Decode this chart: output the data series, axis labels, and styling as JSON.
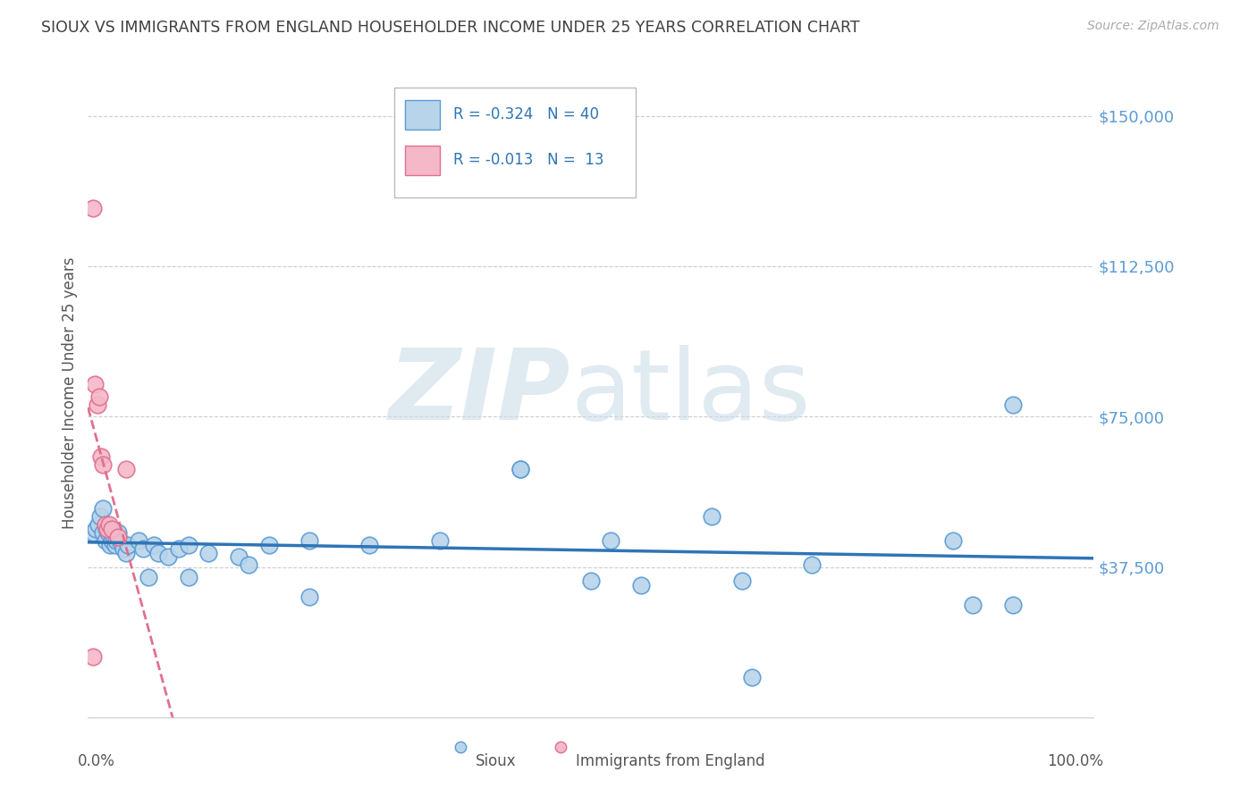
{
  "title": "SIOUX VS IMMIGRANTS FROM ENGLAND HOUSEHOLDER INCOME UNDER 25 YEARS CORRELATION CHART",
  "source": "Source: ZipAtlas.com",
  "ylabel": "Householder Income Under 25 years",
  "ytick_labels": [
    "$37,500",
    "$75,000",
    "$112,500",
    "$150,000"
  ],
  "ytick_values": [
    37500,
    75000,
    112500,
    150000
  ],
  "ymin": 0,
  "ymax": 162000,
  "xmin": 0.0,
  "xmax": 1.0,
  "sioux_color": "#b8d4ea",
  "sioux_edge_color": "#5b9bd5",
  "england_color": "#f4b8c8",
  "england_edge_color": "#e07090",
  "trend_sioux_color": "#2e75b6",
  "trend_england_color": "#e07090",
  "background_color": "#ffffff",
  "grid_color": "#cccccc",
  "axis_color": "#5b9bd5",
  "title_color": "#404040",
  "source_color": "#aaaaaa",
  "sioux_x": [
    0.005,
    0.008,
    0.01,
    0.012,
    0.015,
    0.015,
    0.017,
    0.018,
    0.02,
    0.022,
    0.024,
    0.025,
    0.027,
    0.028,
    0.03,
    0.032,
    0.035,
    0.038,
    0.04,
    0.05,
    0.055,
    0.065,
    0.07,
    0.08,
    0.09,
    0.1,
    0.12,
    0.15,
    0.18,
    0.22,
    0.28,
    0.35,
    0.43,
    0.43,
    0.52,
    0.55,
    0.62,
    0.72,
    0.86,
    0.92
  ],
  "sioux_y": [
    46000,
    47000,
    48000,
    50000,
    52000,
    46000,
    44000,
    47000,
    46000,
    43000,
    44000,
    45000,
    43000,
    44000,
    46000,
    44000,
    42000,
    41000,
    43000,
    44000,
    42000,
    43000,
    41000,
    40000,
    42000,
    43000,
    41000,
    40000,
    43000,
    44000,
    43000,
    44000,
    62000,
    62000,
    44000,
    33000,
    50000,
    38000,
    44000,
    78000
  ],
  "sioux_x2": [
    0.06,
    0.1,
    0.16,
    0.22,
    0.5,
    0.65,
    0.88,
    0.92,
    0.66
  ],
  "sioux_y2": [
    35000,
    35000,
    38000,
    30000,
    34000,
    34000,
    28000,
    28000,
    10000
  ],
  "england_x": [
    0.005,
    0.007,
    0.009,
    0.011,
    0.013,
    0.015,
    0.017,
    0.019,
    0.021,
    0.024,
    0.03,
    0.038,
    0.005
  ],
  "england_y": [
    127000,
    83000,
    78000,
    80000,
    65000,
    63000,
    48000,
    47000,
    48000,
    47000,
    45000,
    62000,
    15000
  ],
  "legend_r1": "-0.324",
  "legend_n1": "40",
  "legend_r2": "-0.013",
  "legend_n2": "13"
}
